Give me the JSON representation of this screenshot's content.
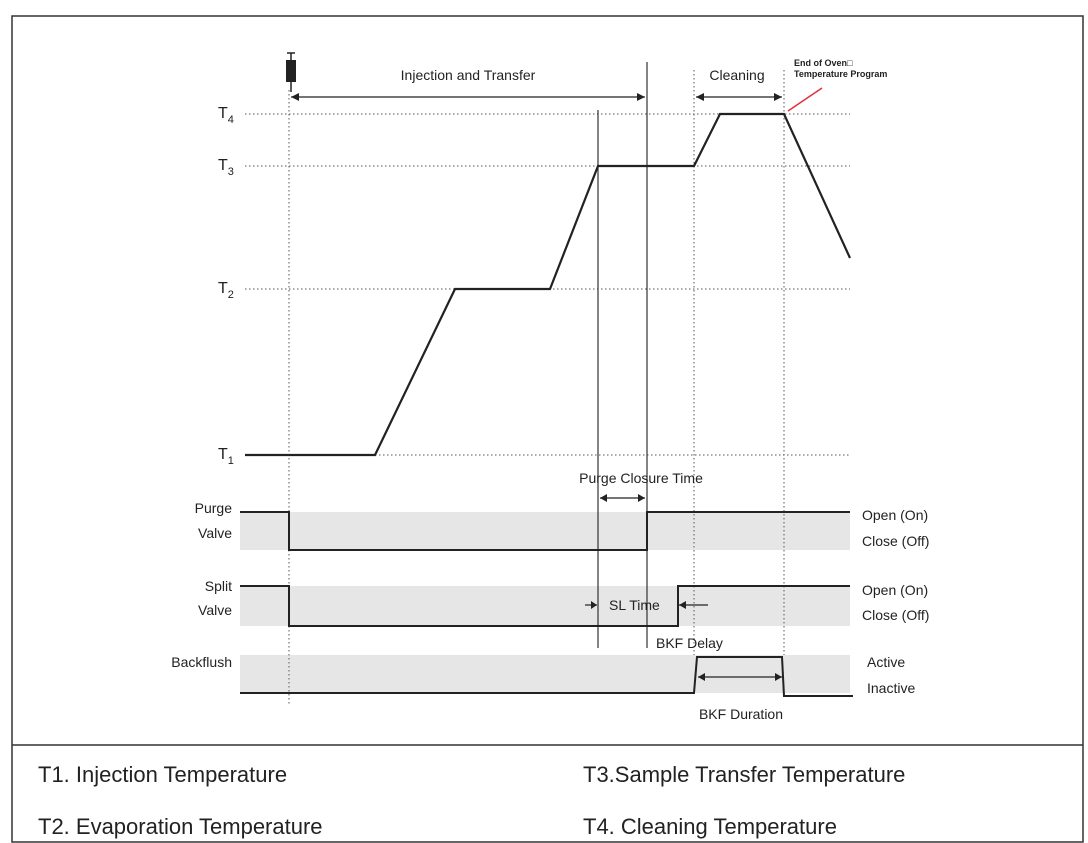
{
  "temperature_levels": [
    {
      "base": "T",
      "sub": "4"
    },
    {
      "base": "T",
      "sub": "3"
    },
    {
      "base": "T",
      "sub": "2"
    },
    {
      "base": "T",
      "sub": "1"
    }
  ],
  "phases": {
    "injection_transfer": "Injection and Transfer",
    "cleaning": "Cleaning",
    "end_of_oven_line1": "End of Oven□",
    "end_of_oven_line2": "Temperature Program"
  },
  "timing_labels": {
    "purge_closure_time": "Purge Closure Time",
    "sl_time": "SL Time",
    "bkf_delay": "BKF Delay",
    "bkf_duration": "BKF Duration"
  },
  "signals": {
    "purge_valve": {
      "name_line1": "Purge",
      "name_line2": "Valve",
      "high": "Open (On)",
      "low": "Close (Off)"
    },
    "split_valve": {
      "name_line1": "Split",
      "name_line2": "Valve",
      "high": "Open (On)",
      "low": "Close (Off)"
    },
    "backflush": {
      "name": "Backflush",
      "high": "Active",
      "low": "Inactive"
    }
  },
  "legend": {
    "t1": "T1. Injection Temperature",
    "t2": "T2. Evaporation Temperature",
    "t3": "T3.Sample Transfer Temperature",
    "t4": "T4. Cleaning Temperature"
  },
  "colors": {
    "band": "#e6e6e6",
    "line": "#222222",
    "accent": "#e0303a"
  }
}
